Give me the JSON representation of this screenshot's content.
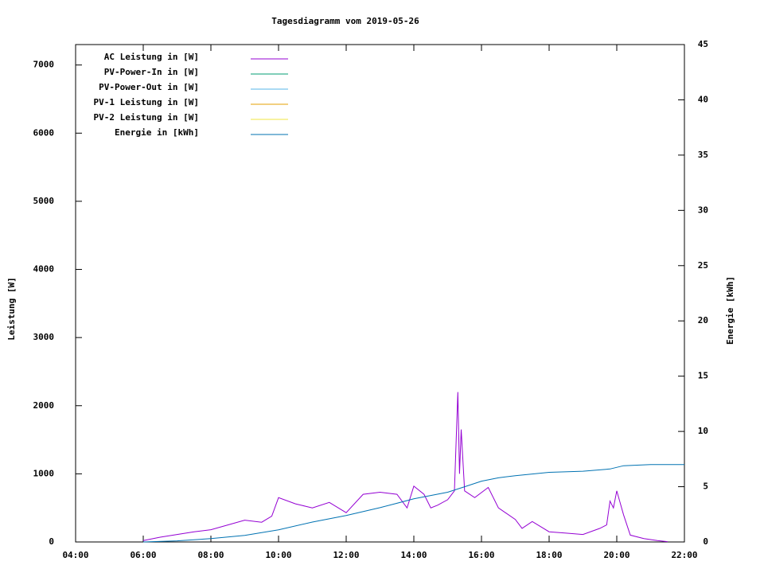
{
  "chart_data": {
    "type": "line",
    "title": "Tagesdiagramm vom 2019-05-26",
    "ylabel": "Leistung [W]",
    "y2label": "Energie [kWh]",
    "xlim": [
      4,
      22
    ],
    "xticks": [
      {
        "value": 4,
        "label": "04:00"
      },
      {
        "value": 6,
        "label": "06:00"
      },
      {
        "value": 8,
        "label": "08:00"
      },
      {
        "value": 10,
        "label": "10:00"
      },
      {
        "value": 12,
        "label": "12:00"
      },
      {
        "value": 14,
        "label": "14:00"
      },
      {
        "value": 16,
        "label": "16:00"
      },
      {
        "value": 18,
        "label": "18:00"
      },
      {
        "value": 20,
        "label": "20:00"
      },
      {
        "value": 22,
        "label": "22:00"
      }
    ],
    "ylim": [
      0,
      7300
    ],
    "yticks": [
      0,
      1000,
      2000,
      3000,
      4000,
      5000,
      6000,
      7000
    ],
    "y2lim": [
      0,
      45
    ],
    "y2ticks": [
      0,
      5,
      10,
      15,
      20,
      25,
      30,
      35,
      40,
      45
    ],
    "series": [
      {
        "name": "AC Leistung in [W]",
        "color": "#9400d3",
        "x": [
          6.0,
          6.5,
          7.0,
          7.5,
          8.0,
          8.5,
          9.0,
          9.5,
          9.8,
          10.0,
          10.5,
          11.0,
          11.5,
          12.0,
          12.5,
          13.0,
          13.5,
          13.8,
          14.0,
          14.3,
          14.5,
          14.7,
          15.0,
          15.2,
          15.3,
          15.35,
          15.4,
          15.5,
          15.8,
          16.2,
          16.5,
          17.0,
          17.2,
          17.5,
          18.0,
          18.5,
          19.0,
          19.5,
          19.7,
          19.8,
          19.9,
          20.0,
          20.2,
          20.4,
          20.8,
          21.2,
          21.5
        ],
        "values": [
          20,
          70,
          110,
          150,
          180,
          250,
          320,
          290,
          380,
          650,
          560,
          500,
          580,
          430,
          700,
          730,
          700,
          500,
          820,
          700,
          500,
          540,
          620,
          750,
          2200,
          1000,
          1650,
          750,
          650,
          800,
          500,
          330,
          200,
          300,
          150,
          130,
          110,
          200,
          250,
          600,
          500,
          750,
          400,
          100,
          50,
          20,
          5
        ]
      },
      {
        "name": "PV-Power-In in [W]",
        "color": "#009e73",
        "x": [],
        "values": []
      },
      {
        "name": "PV-Power-Out in [W]",
        "color": "#56b4e9",
        "x": [],
        "values": []
      },
      {
        "name": "PV-1 Leistung in [W]",
        "color": "#e69f00",
        "x": [],
        "values": []
      },
      {
        "name": "PV-2 Leistung in [W]",
        "color": "#f0e442",
        "x": [],
        "values": []
      },
      {
        "name": "Energie in [kWh]",
        "color": "#0072b2",
        "axis": "y2",
        "x": [
          6,
          7,
          8,
          9,
          10,
          11,
          12,
          13,
          14,
          15,
          15.5,
          16,
          16.5,
          17,
          18,
          19,
          19.8,
          20.2,
          21,
          22
        ],
        "values": [
          0,
          0.1,
          0.3,
          0.6,
          1.1,
          1.8,
          2.4,
          3.1,
          3.9,
          4.5,
          5.0,
          5.5,
          5.8,
          6.0,
          6.3,
          6.4,
          6.6,
          6.9,
          7.0,
          7.0
        ]
      }
    ]
  }
}
